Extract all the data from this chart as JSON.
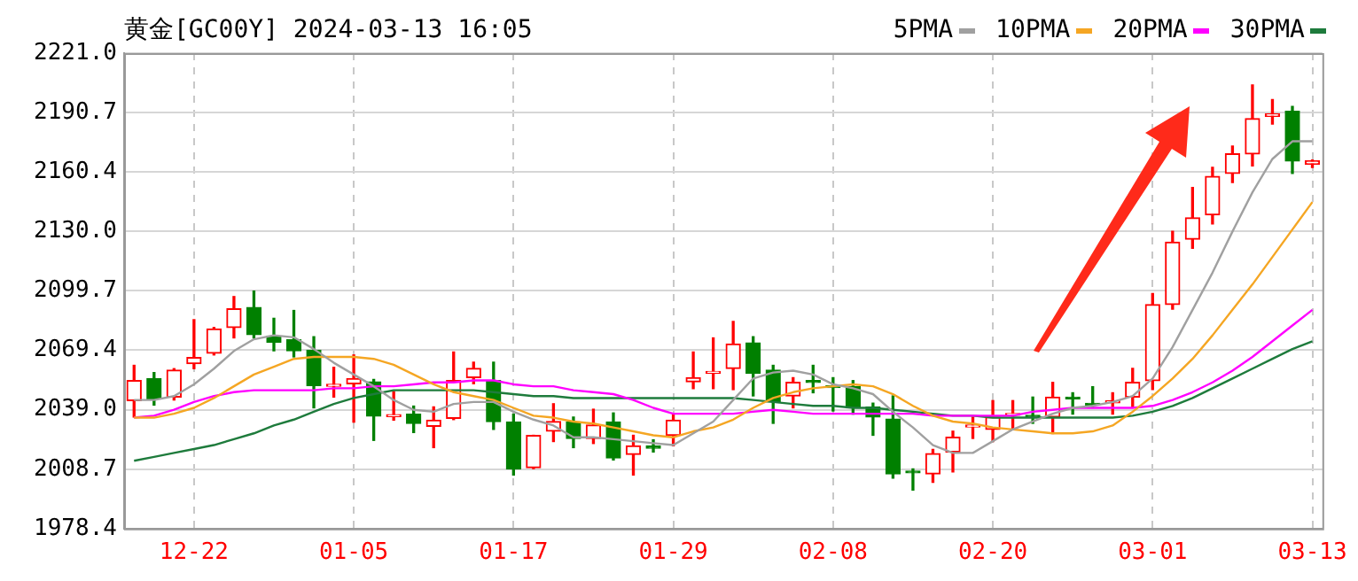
{
  "chart_data": {
    "type": "candlestick",
    "title": "黄金[GC00Y] 2024-03-13 16:05",
    "categories": [
      null,
      null,
      null,
      "12-22",
      null,
      null,
      null,
      null,
      null,
      null,
      null,
      "01-05",
      null,
      null,
      null,
      null,
      null,
      null,
      null,
      "01-17",
      null,
      null,
      null,
      null,
      null,
      null,
      null,
      "01-29",
      null,
      null,
      null,
      null,
      null,
      null,
      null,
      "02-08",
      null,
      null,
      null,
      null,
      null,
      null,
      null,
      "02-20",
      null,
      null,
      null,
      null,
      null,
      null,
      null,
      "03-01",
      null,
      null,
      null,
      null,
      null,
      null,
      null,
      "03-13"
    ],
    "ohlc": [
      [
        2043.7,
        2061.7,
        2035.3,
        2053.9
      ],
      [
        2054.9,
        2058,
        2041.4,
        2044.6
      ],
      [
        2045.5,
        2060,
        2044,
        2059.2
      ],
      [
        2062.6,
        2085,
        2060,
        2065.7
      ],
      [
        2067.9,
        2081,
        2067,
        2080.3
      ],
      [
        2081,
        2096.8,
        2075.7,
        2090.6
      ],
      [
        2091.2,
        2099.6,
        2075.7,
        2077.3
      ],
      [
        2076.6,
        2085.7,
        2069.1,
        2073.5
      ],
      [
        2074.7,
        2089.7,
        2066,
        2069.1
      ],
      [
        2069.4,
        2076.3,
        2040,
        2051.4
      ],
      [
        2051,
        2060.7,
        2045.5,
        2052
      ],
      [
        2052.3,
        2067,
        2032.7,
        2054.9
      ],
      [
        2053.3,
        2054.5,
        2023.4,
        2035.8
      ],
      [
        2035.5,
        2048.3,
        2033.7,
        2036.5
      ],
      [
        2036.8,
        2040.9,
        2027.4,
        2032.1
      ],
      [
        2030.6,
        2040.5,
        2019.7,
        2033.7
      ],
      [
        2034.6,
        2068.5,
        2034,
        2053.9
      ],
      [
        2055.4,
        2063.3,
        2052.3,
        2060.1
      ],
      [
        2053.9,
        2063.3,
        2029,
        2033
      ],
      [
        2032.8,
        2036.8,
        2005.7,
        2008.8
      ],
      [
        2009.4,
        2026,
        2009,
        2025.9
      ],
      [
        2028.1,
        2042.1,
        2022.8,
        2033
      ],
      [
        2032.8,
        2035.3,
        2019.7,
        2024.4
      ],
      [
        2024.4,
        2039.3,
        2021.8,
        2031.2
      ],
      [
        2032.8,
        2037.4,
        2013.4,
        2014.4
      ],
      [
        2016.2,
        2026,
        2005.7,
        2020.6
      ],
      [
        2020.6,
        2023.7,
        2017.5,
        2019.4
      ],
      [
        2026,
        2036.8,
        2020.6,
        2033.7
      ],
      [
        2053.3,
        2068.5,
        2049.8,
        2055.4
      ],
      [
        2057.6,
        2075.7,
        2049.8,
        2058.6
      ],
      [
        2060.1,
        2084.1,
        2049.3,
        2072.6
      ],
      [
        2073.2,
        2076.3,
        2046.1,
        2057.7
      ],
      [
        2059.2,
        2061.7,
        2032.1,
        2043
      ],
      [
        2046.1,
        2055.4,
        2040,
        2053
      ],
      [
        2053.5,
        2061.7,
        2047.7,
        2053
      ],
      [
        2051.3,
        2055.4,
        2038.4,
        2050.3
      ],
      [
        2050.8,
        2053.9,
        2036.8,
        2040
      ],
      [
        2040.5,
        2042.4,
        2026,
        2035.3
      ],
      [
        2034.3,
        2046.1,
        2004.1,
        2006.3
      ],
      [
        2007.3,
        2008.8,
        1998,
        2006.8
      ],
      [
        2006.3,
        2018.8,
        2002,
        2016.6
      ],
      [
        2017.5,
        2028.1,
        2007.3,
        2025
      ],
      [
        2030.2,
        2035.3,
        2024.4,
        2031.2
      ],
      [
        2029,
        2043.7,
        2022.8,
        2035.3
      ],
      [
        2036.2,
        2043.7,
        2029,
        2037
      ],
      [
        2035.8,
        2045.5,
        2032.1,
        2035.3
      ],
      [
        2035.3,
        2053,
        2026.9,
        2045.5
      ],
      [
        2045,
        2047.7,
        2036.8,
        2044.6
      ],
      [
        2041.8,
        2050.8,
        2040,
        2041.4
      ],
      [
        2042.6,
        2047.7,
        2036.8,
        2043.6
      ],
      [
        2045.5,
        2060.1,
        2040.5,
        2053
      ],
      [
        2053.9,
        2098.3,
        2049.3,
        2092.7
      ],
      [
        2092.7,
        2130.1,
        2090.3,
        2124.5
      ],
      [
        2126,
        2152.5,
        2121.4,
        2137
      ],
      [
        2138.5,
        2162.7,
        2133.8,
        2158.1
      ],
      [
        2159.6,
        2173.6,
        2155,
        2169.6
      ],
      [
        2169.6,
        2204.8,
        2163.5,
        2187.6
      ],
      [
        2188.8,
        2197.3,
        2184.8,
        2190
      ],
      [
        2191.3,
        2193.8,
        2159.6,
        2165.9
      ],
      [
        2164.4,
        2166.5,
        2162.7,
        2166
      ]
    ],
    "colors": [
      "#ff0000",
      "#008000",
      "#ff0000",
      "#ff0000",
      "#ff0000",
      "#ff0000",
      "#008000",
      "#008000",
      "#008000",
      "#008000",
      "#ff0000",
      "#ff0000",
      "#008000",
      "#ff0000",
      "#008000",
      "#ff0000",
      "#ff0000",
      "#ff0000",
      "#008000",
      "#008000",
      "#ff0000",
      "#ff0000",
      "#008000",
      "#ff0000",
      "#008000",
      "#ff0000",
      "#008000",
      "#ff0000",
      "#ff0000",
      "#ff0000",
      "#ff0000",
      "#008000",
      "#008000",
      "#ff0000",
      "#008000",
      "#008000",
      "#008000",
      "#008000",
      "#008000",
      "#008000",
      "#ff0000",
      "#ff0000",
      "#ff0000",
      "#ff0000",
      "#ff0000",
      "#008000",
      "#ff0000",
      "#008000",
      "#008000",
      "#ff0000",
      "#ff0000",
      "#ff0000",
      "#ff0000",
      "#ff0000",
      "#ff0000",
      "#ff0000",
      "#ff0000",
      "#ff0000",
      "#008000",
      "#ff0000"
    ],
    "series": [
      {
        "type": "line",
        "name": "5PMA",
        "color": "#a0a0a0",
        "values": [
          2044,
          2044,
          2046,
          2052,
          2060,
          2069,
          2075,
          2077,
          2076,
          2070,
          2063,
          2057,
          2051,
          2044,
          2039,
          2038,
          2042,
          2043,
          2043,
          2038,
          2034,
          2031,
          2025,
          2025,
          2024,
          2023,
          2022,
          2021,
          2027,
          2033,
          2044,
          2055,
          2058,
          2059,
          2057,
          2052,
          2050,
          2047,
          2038,
          2030,
          2021,
          2017,
          2017,
          2023,
          2029,
          2033,
          2037,
          2040,
          2041,
          2043,
          2046,
          2055,
          2071,
          2090,
          2109,
          2130,
          2150,
          2167,
          2176,
          2176
        ]
      },
      {
        "type": "line",
        "name": "10PMA",
        "color": "#f5a623",
        "values": [
          2035,
          2035,
          2037,
          2040,
          2045,
          2051,
          2057,
          2061,
          2065,
          2066,
          2066,
          2066,
          2065,
          2062,
          2057,
          2052,
          2048,
          2046,
          2044,
          2040,
          2036,
          2035,
          2033,
          2032,
          2030,
          2028,
          2026,
          2025,
          2028,
          2030,
          2034,
          2040,
          2045,
          2048,
          2050,
          2051,
          2052,
          2051,
          2047,
          2041,
          2036,
          2033,
          2032,
          2030,
          2029,
          2028,
          2027,
          2027,
          2028,
          2031,
          2038,
          2046,
          2055,
          2065,
          2077,
          2090,
          2103,
          2117,
          2131,
          2145
        ]
      },
      {
        "type": "line",
        "name": "20PMA",
        "color": "#ff00ff",
        "values": [
          2035,
          2036,
          2039,
          2043,
          2046,
          2048,
          2049,
          2049,
          2049,
          2049,
          2050,
          2050,
          2051,
          2051,
          2052,
          2053,
          2053,
          2054,
          2054,
          2052,
          2051,
          2051,
          2049,
          2048,
          2047,
          2044,
          2040,
          2037,
          2037,
          2037,
          2037,
          2038,
          2039,
          2038,
          2037,
          2037,
          2037,
          2037,
          2037,
          2037,
          2036,
          2036,
          2036,
          2036,
          2036,
          2038,
          2039,
          2040,
          2040,
          2040,
          2040,
          2041,
          2044,
          2048,
          2053,
          2059,
          2066,
          2074,
          2082,
          2090
        ]
      },
      {
        "type": "line",
        "name": "30PMA",
        "color": "#1e7b3c",
        "values": [
          2013,
          2015,
          2017,
          2019,
          2021,
          2024,
          2027,
          2031,
          2034,
          2038,
          2042,
          2045,
          2047,
          2049,
          2049,
          2049,
          2049,
          2049,
          2048,
          2047,
          2046,
          2046,
          2045,
          2045,
          2045,
          2045,
          2045,
          2045,
          2045,
          2045,
          2045,
          2044,
          2043,
          2042,
          2041,
          2041,
          2040,
          2040,
          2039,
          2038,
          2037,
          2036,
          2036,
          2035,
          2035,
          2035,
          2035,
          2035,
          2035,
          2035,
          2036,
          2038,
          2041,
          2045,
          2050,
          2055,
          2060,
          2065,
          2070,
          2074
        ]
      }
    ],
    "ylim": [
      1978.4,
      2221.0
    ],
    "yticks": [
      {
        "value": 1978.4,
        "label": "1978.4"
      },
      {
        "value": 2008.7,
        "label": "2008.7"
      },
      {
        "value": 2039.0,
        "label": "2039.0"
      },
      {
        "value": 2069.4,
        "label": "2069.4"
      },
      {
        "value": 2099.7,
        "label": "2099.7"
      },
      {
        "value": 2130.0,
        "label": "2130.0"
      },
      {
        "value": 2160.4,
        "label": "2160.4"
      },
      {
        "value": 2190.7,
        "label": "2190.7"
      },
      {
        "value": 2221.0,
        "label": "2221.0"
      }
    ],
    "grid": true,
    "legend": "top right"
  }
}
